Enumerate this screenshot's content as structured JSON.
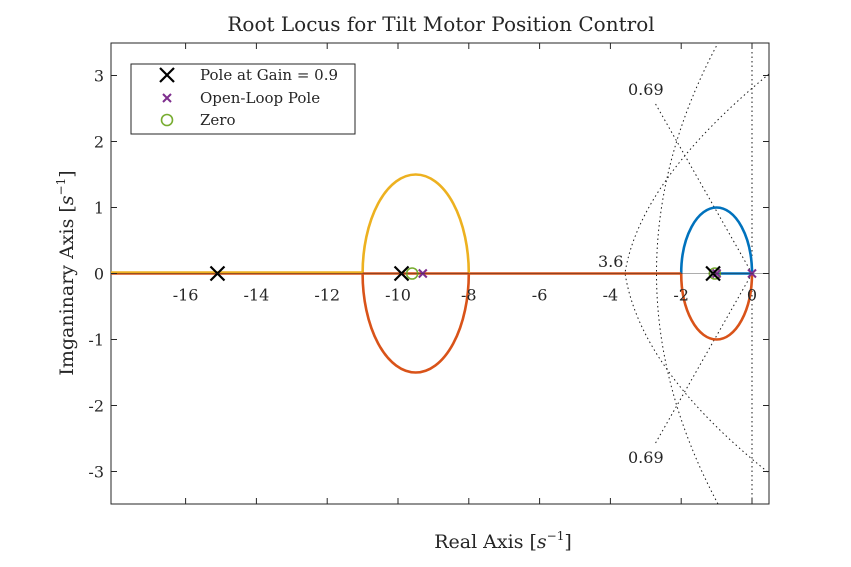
{
  "chart_data": {
    "type": "line",
    "title": "Root Locus for Tilt Motor Position Control",
    "xlabel": "Real Axis [s⁻¹]",
    "ylabel": "Imganinary Axis [s⁻¹]",
    "xlim": [
      -18,
      0.5
    ],
    "ylim": [
      -3.5,
      3.5
    ],
    "xticks": [
      -16,
      -14,
      -12,
      -10,
      -8,
      -6,
      -4,
      -2,
      0
    ],
    "yticks": [
      -3,
      -2,
      -1,
      0,
      1,
      2,
      3
    ],
    "grid": false,
    "legend_position": "top-left",
    "legend": [
      {
        "label": "Pole at Gain = 0.9",
        "marker": "x",
        "color": "#000000"
      },
      {
        "label": "Open-Loop Pole",
        "marker": "x-small",
        "color": "#7E2F8E"
      },
      {
        "label": "Zero",
        "marker": "o",
        "color": "#77AC30"
      }
    ],
    "series": [
      {
        "color": "#0072BD",
        "points": [
          [
            -18,
            0
          ],
          [
            -11,
            0
          ],
          [
            -8,
            0
          ],
          [
            -2,
            0
          ]
        ],
        "ellipse_upper": {
          "center": -1,
          "half_width": 1.0,
          "height": 1.0
        },
        "real_segment": [
          [
            -1,
            0
          ],
          [
            0,
            0
          ]
        ]
      },
      {
        "color": "#D95319",
        "ellipse_lower": [
          {
            "center": -9.5,
            "half_width": 1.5,
            "height": 1.5
          },
          {
            "center": -1,
            "half_width": 1.0,
            "height": 1.0
          }
        ],
        "real_segment": [
          [
            -8,
            0
          ],
          [
            -2,
            0
          ]
        ]
      },
      {
        "color": "#EDB120",
        "ellipse_upper": {
          "center": -9.5,
          "half_width": 1.5,
          "height": 1.5
        },
        "real_segment": [
          [
            -18,
            0
          ],
          [
            -11,
            0
          ]
        ]
      }
    ],
    "closed_loop_poles": [
      [
        -15.1,
        0
      ],
      [
        -9.9,
        0
      ],
      [
        -1.1,
        0
      ]
    ],
    "open_loop_poles": [
      [
        -9.3,
        0
      ],
      [
        -1.0,
        0
      ],
      [
        0,
        0
      ]
    ],
    "zeros": [
      [
        -9.6,
        0
      ],
      [
        -1.05,
        0
      ]
    ],
    "damping_annotations": [
      "0.69",
      "0.69"
    ],
    "frequency_annotation": "3.6"
  }
}
